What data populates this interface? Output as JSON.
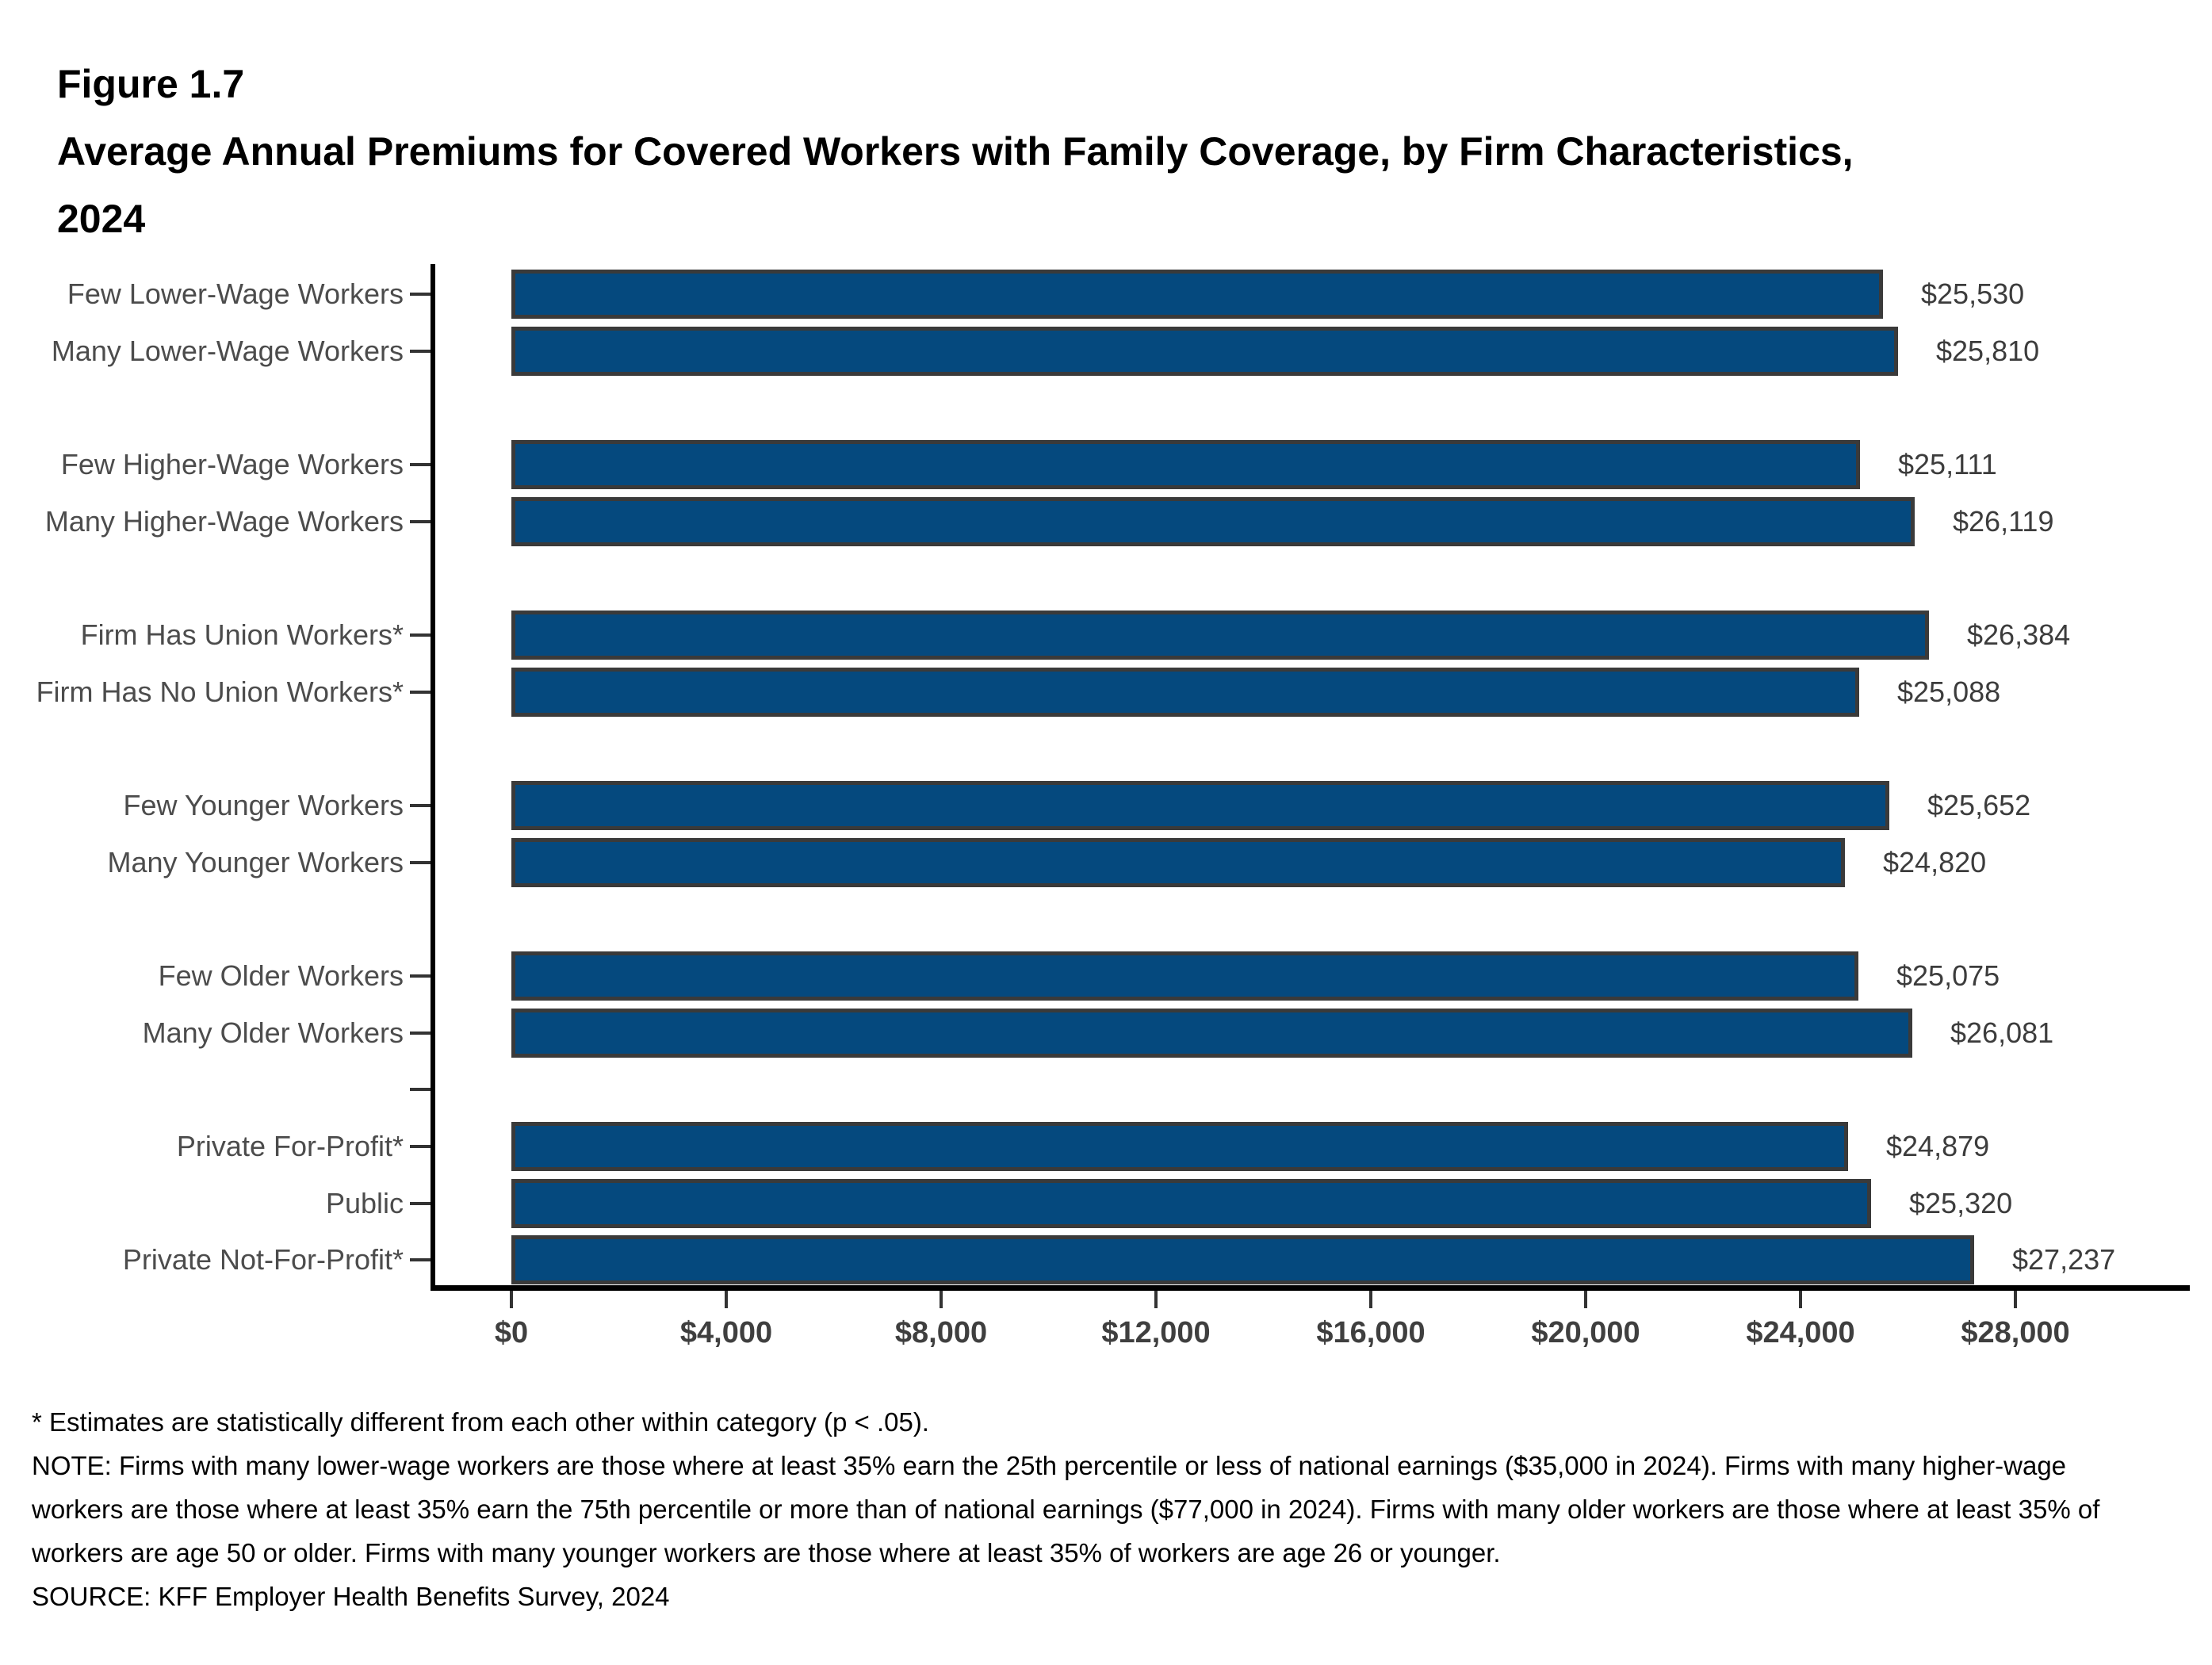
{
  "header": {
    "figure_label": "Figure 1.7",
    "title": "Average Annual Premiums for Covered Workers with Family Coverage, by Firm Characteristics, 2024"
  },
  "chart_data": {
    "type": "bar",
    "orientation": "horizontal",
    "title": "Average Annual Premiums for Covered Workers with Family Coverage, by Firm Characteristics, 2024",
    "categories": [
      "Few Lower-Wage Workers",
      "Many Lower-Wage Workers",
      "Few Higher-Wage Workers",
      "Many Higher-Wage Workers",
      "Firm Has Union Workers*",
      "Firm Has No Union Workers*",
      "Few Younger Workers",
      "Many Younger Workers",
      "Few Older Workers",
      "Many Older Workers",
      "Private For-Profit*",
      "Public",
      "Private Not-For-Profit*"
    ],
    "values": [
      25530,
      25810,
      25111,
      26119,
      26384,
      25088,
      25652,
      24820,
      25075,
      26081,
      24879,
      25320,
      27237
    ],
    "value_labels": [
      "$25,530",
      "$25,810",
      "$25,111",
      "$26,119",
      "$26,384",
      "$25,088",
      "$25,652",
      "$24,820",
      "$25,075",
      "$26,081",
      "$24,879",
      "$25,320",
      "$27,237"
    ],
    "group_sizes": [
      2,
      2,
      2,
      2,
      2,
      3
    ],
    "xlabel": "",
    "ylabel": "",
    "xlim": [
      0,
      31000
    ],
    "x_tick_values": [
      0,
      4000,
      8000,
      12000,
      16000,
      20000,
      24000,
      28000
    ],
    "x_tick_labels": [
      "$0",
      "$4,000",
      "$8,000",
      "$12,000",
      "$16,000",
      "$20,000",
      "$24,000",
      "$28,000"
    ],
    "grid": false,
    "legend": false,
    "colors": {
      "bar_fill": "#05497E",
      "bar_border": "#3A3A3A",
      "axis_line": "#000000",
      "tick_mark": "#333333",
      "category_label": "#4C4C4C",
      "value_label": "#3C3C3C",
      "x_tick_label": "#3F3F3F"
    }
  },
  "footnotes": {
    "star_note": "* Estimates are statistically different from each other within category (p < .05).",
    "note": "NOTE: Firms with many lower-wage workers are those where at least 35% earn the 25th percentile or less of national earnings ($35,000 in 2024). Firms with many higher-wage workers are those where at least 35% earn the 75th percentile or more than of national earnings ($77,000 in 2024). Firms with many older workers are those where at least 35% of workers are age 50 or older. Firms with many younger workers are those where at least 35% of workers are age 26 or younger.",
    "source": "SOURCE: KFF Employer Health Benefits Survey, 2024"
  }
}
